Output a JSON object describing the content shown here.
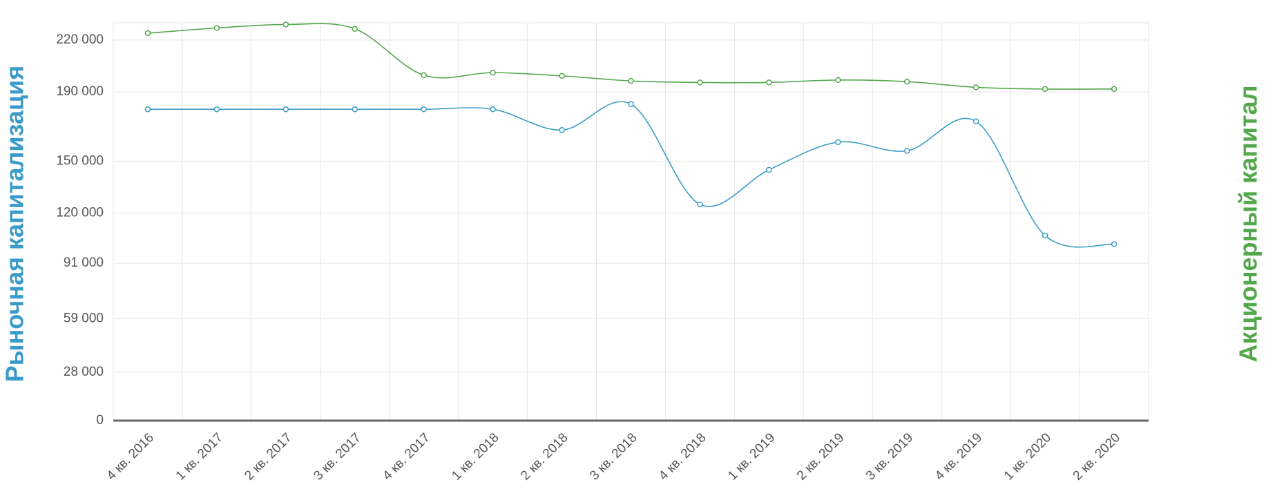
{
  "chart_data": {
    "type": "line",
    "ylabel": "Рыночная капитализация",
    "y2label": "Акционерный капитал",
    "categories": [
      "4 кв. 2016",
      "1 кв. 2017",
      "2 кв. 2017",
      "3 кв. 2017",
      "4 кв. 2017",
      "1 кв. 2018",
      "2 кв. 2018",
      "3 кв. 2018",
      "4 кв. 2018",
      "1 кв. 2019",
      "2 кв. 2019",
      "3 кв. 2019",
      "4 кв. 2019",
      "1 кв. 2020",
      "2 кв. 2020"
    ],
    "series": [
      {
        "color": "#3a9bc8",
        "values": [
          180000,
          180000,
          180000,
          180000,
          180000,
          180000,
          168000,
          183000,
          125000,
          145000,
          161000,
          156000,
          173000,
          107000,
          102000
        ]
      },
      {
        "color": "#52a84a",
        "values": [
          224000,
          227000,
          229000,
          226500,
          199700,
          201200,
          199300,
          196400,
          195500,
          195500,
          196900,
          196000,
          192700,
          191700,
          191700
        ]
      }
    ],
    "ylim": [
      0,
      230000
    ],
    "yticks": [
      0,
      {
        "value": 28000,
        "label": "28 000"
      },
      {
        "value": 59000,
        "label": "59 000"
      },
      {
        "value": 91000,
        "label": "91 000"
      },
      {
        "value": 120000,
        "label": "120 000"
      },
      {
        "value": 150000,
        "label": "150 000"
      },
      {
        "value": 190000,
        "label": "190 000"
      },
      {
        "value": 220000,
        "label": "220 000"
      }
    ],
    "grid": true
  }
}
